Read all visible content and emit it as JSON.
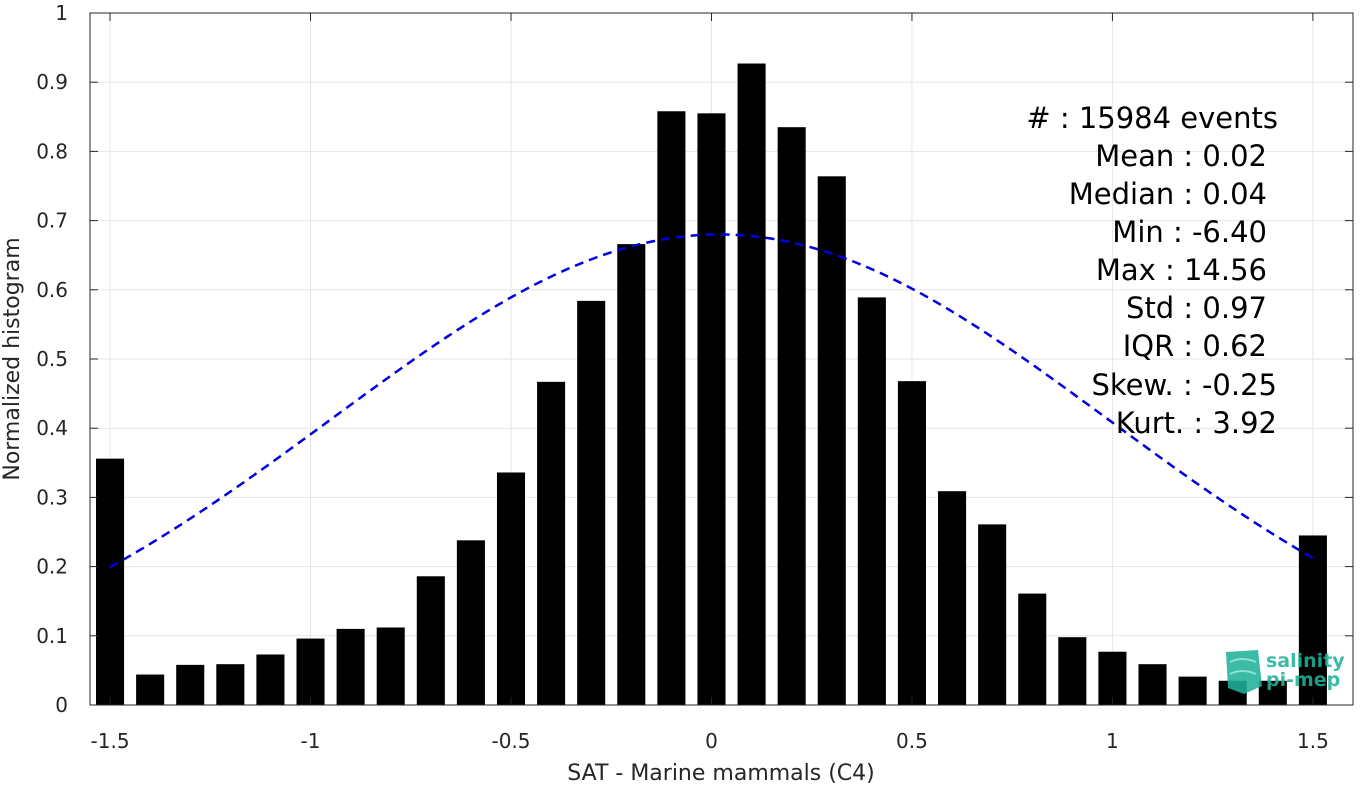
{
  "chart_data": {
    "type": "bar",
    "xlabel": "SAT - Marine mammals (C4)",
    "ylabel": "Normalized histogram",
    "xlim": [
      -1.55,
      1.6
    ],
    "ylim": [
      0,
      1
    ],
    "grid": true,
    "x_ticks": [
      -1.5,
      -1,
      -0.5,
      0,
      0.5,
      1,
      1.5
    ],
    "x_tick_labels": [
      "-1.5",
      "-1",
      "-0.5",
      "0",
      "0.5",
      "1",
      "1.5"
    ],
    "y_ticks": [
      0,
      0.1,
      0.2,
      0.3,
      0.4,
      0.5,
      0.6,
      0.7,
      0.8,
      0.9,
      1
    ],
    "y_tick_labels": [
      "0",
      "0.1",
      "0.2",
      "0.3",
      "0.4",
      "0.5",
      "0.6",
      "0.7",
      "0.8",
      "0.9",
      "1"
    ],
    "bar_width": 0.07,
    "bar_color": "#000000",
    "x": [
      -1.5,
      -1.4,
      -1.3,
      -1.2,
      -1.1,
      -1.0,
      -0.9,
      -0.8,
      -0.7,
      -0.6,
      -0.5,
      -0.4,
      -0.3,
      -0.2,
      -0.1,
      0.0,
      0.1,
      0.2,
      0.3,
      0.4,
      0.5,
      0.6,
      0.7,
      0.8,
      0.9,
      1.0,
      1.1,
      1.2,
      1.3,
      1.4,
      1.5
    ],
    "values": [
      0.356,
      0.044,
      0.058,
      0.059,
      0.073,
      0.096,
      0.11,
      0.112,
      0.186,
      0.238,
      0.336,
      0.467,
      0.584,
      0.666,
      0.858,
      0.855,
      0.927,
      0.835,
      0.764,
      0.589,
      0.468,
      0.309,
      0.261,
      0.161,
      0.098,
      0.077,
      0.059,
      0.041,
      0.035,
      0.035,
      0.245
    ],
    "fit_curve": {
      "type": "gaussian",
      "mean": 0.02,
      "std": 0.97,
      "peak": 0.68,
      "x_range": [
        -1.5,
        1.5
      ],
      "color": "#0000e0",
      "style": "dashed"
    },
    "stats": [
      "#  : 15984 events",
      "Mean : 0.02",
      "Median : 0.04",
      "Min : -6.40",
      "Max : 14.56",
      "Std : 0.97",
      "IQR : 0.62",
      "Skew. : -0.25",
      "Kurt. : 3.92"
    ]
  },
  "logo": {
    "lines": [
      "salinity",
      "pi-mep"
    ],
    "color": "#20b29a"
  }
}
